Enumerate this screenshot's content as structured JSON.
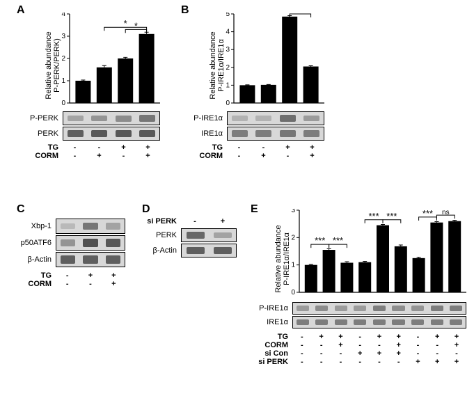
{
  "colors": {
    "bar": "#000000",
    "axis": "#000000",
    "bg": "#ffffff",
    "blot_bg": "#d8d8d8",
    "band_dark": "#555555",
    "band_mid": "#888888",
    "band_light": "#b5b5b5"
  },
  "panelA": {
    "label": "A",
    "ylabel": "Relative abundance\nP-PERK/PERK)",
    "ylim": [
      0,
      4
    ],
    "yticks": [
      0,
      1,
      2,
      3,
      4
    ],
    "values": [
      1.0,
      1.6,
      2.0,
      3.1
    ],
    "errors": [
      0.03,
      0.08,
      0.05,
      0.08
    ],
    "sig": [
      {
        "from": 1,
        "to": 3,
        "label": "*",
        "y": 3.4
      },
      {
        "from": 2,
        "to": 3,
        "label": "*",
        "y": 3.3
      }
    ],
    "blots": [
      {
        "label": "P-PERK",
        "bands": [
          0.25,
          0.35,
          0.4,
          0.55
        ]
      },
      {
        "label": "PERK",
        "bands": [
          0.7,
          0.75,
          0.75,
          0.75
        ]
      }
    ],
    "treatments": [
      {
        "label": "TG",
        "vals": [
          "-",
          "-",
          "+",
          "+"
        ]
      },
      {
        "label": "CORM",
        "vals": [
          "-",
          "+",
          "-",
          "+"
        ]
      }
    ]
  },
  "panelB": {
    "label": "B",
    "ylabel": "Relative abundance\nP-IRE1α/IRE1α",
    "ylim": [
      0,
      5
    ],
    "yticks": [
      0,
      1,
      2,
      3,
      4,
      5
    ],
    "values": [
      1.0,
      1.02,
      4.85,
      2.05
    ],
    "errors": [
      0.02,
      0.02,
      0.05,
      0.04
    ],
    "sig": [
      {
        "from": 2,
        "to": 3,
        "label": "*",
        "y": 5.0
      }
    ],
    "blots": [
      {
        "label": "P-IRE1α",
        "bands": [
          0.15,
          0.15,
          0.6,
          0.3
        ]
      },
      {
        "label": "IRE1α",
        "bands": [
          0.5,
          0.5,
          0.55,
          0.5
        ]
      }
    ],
    "treatments": [
      {
        "label": "TG",
        "vals": [
          "-",
          "-",
          "+",
          "+"
        ]
      },
      {
        "label": "CORM",
        "vals": [
          "-",
          "+",
          "-",
          "+"
        ]
      }
    ]
  },
  "panelC": {
    "label": "C",
    "blots": [
      {
        "label": "Xbp-1",
        "bands": [
          0.1,
          0.55,
          0.25
        ]
      },
      {
        "label": "p50ATF6",
        "bands": [
          0.35,
          0.8,
          0.75
        ]
      },
      {
        "label": "β-Actin",
        "bands": [
          0.7,
          0.7,
          0.7
        ]
      }
    ],
    "treatments": [
      {
        "label": "TG",
        "vals": [
          "-",
          "+",
          "+"
        ]
      },
      {
        "label": "CORM",
        "vals": [
          "-",
          "-",
          "+"
        ]
      }
    ]
  },
  "panelD": {
    "label": "D",
    "header": {
      "label": "si PERK",
      "vals": [
        "-",
        "+"
      ]
    },
    "blots": [
      {
        "label": "PERK",
        "bands": [
          0.65,
          0.25
        ]
      },
      {
        "label": "β-Actin",
        "bands": [
          0.7,
          0.7
        ]
      }
    ]
  },
  "panelE": {
    "label": "E",
    "ylabel": "Relative abundance\nP-IRE1α/IRE1α",
    "ylim": [
      0,
      3
    ],
    "yticks": [
      0,
      1,
      2,
      3
    ],
    "values": [
      1.0,
      1.55,
      1.08,
      1.1,
      2.45,
      1.68,
      1.25,
      2.55,
      2.6
    ],
    "errors": [
      0.02,
      0.04,
      0.04,
      0.03,
      0.03,
      0.05,
      0.03,
      0.03,
      0.03
    ],
    "sig": [
      {
        "from": 0,
        "to": 1,
        "label": "***",
        "y": 1.75
      },
      {
        "from": 1,
        "to": 2,
        "label": "***",
        "y": 1.75
      },
      {
        "from": 3,
        "to": 4,
        "label": "***",
        "y": 2.65
      },
      {
        "from": 4,
        "to": 5,
        "label": "***",
        "y": 2.65
      },
      {
        "from": 6,
        "to": 7,
        "label": "***",
        "y": 2.75
      },
      {
        "from": 7,
        "to": 8,
        "label": "ns",
        "y": 2.82
      }
    ],
    "blots": [
      {
        "label": "P-IRE1α",
        "bands": [
          0.3,
          0.4,
          0.3,
          0.3,
          0.5,
          0.4,
          0.35,
          0.5,
          0.5
        ]
      },
      {
        "label": "IRE1α",
        "bands": [
          0.5,
          0.5,
          0.5,
          0.5,
          0.5,
          0.5,
          0.5,
          0.5,
          0.5
        ]
      }
    ],
    "treatments": [
      {
        "label": "TG",
        "vals": [
          "-",
          "+",
          "+",
          "-",
          "+",
          "+",
          "-",
          "+",
          "+"
        ]
      },
      {
        "label": "CORM",
        "vals": [
          "-",
          "-",
          "+",
          "-",
          "-",
          "+",
          "-",
          "-",
          "+"
        ]
      },
      {
        "label": "si Con",
        "vals": [
          "-",
          "-",
          "-",
          "+",
          "+",
          "+",
          "-",
          "-",
          "-"
        ]
      },
      {
        "label": "si PERK",
        "vals": [
          "-",
          "-",
          "-",
          "-",
          "-",
          "-",
          "+",
          "+",
          "+"
        ]
      }
    ]
  }
}
